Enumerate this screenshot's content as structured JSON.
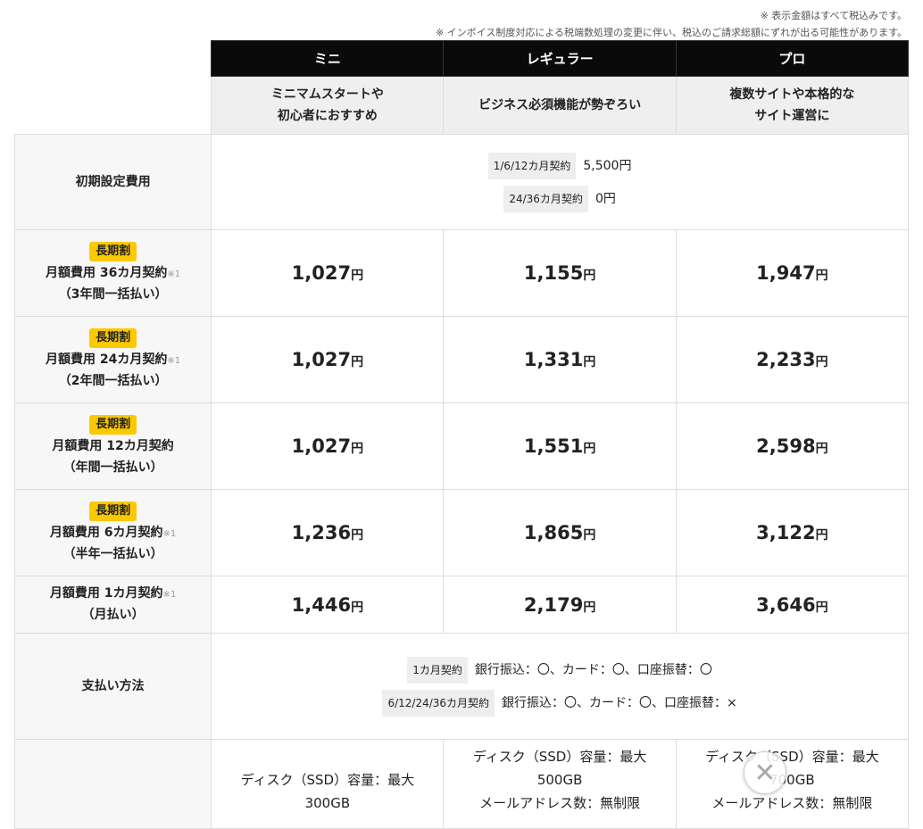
{
  "notes": [
    "※ 表示金額はすべて税込みです。",
    "※ インボイス制度対応による税端数処理の変更に伴い、税込のご請求総額にずれが出る可能性があります。"
  ],
  "plans": [
    {
      "name": "ミニ",
      "desc1": "ミニマムスタートや",
      "desc2": "初心者におすすめ"
    },
    {
      "name": "レギュラー",
      "desc1": "ビジネス必須機能が勢ぞろい",
      "desc2": ""
    },
    {
      "name": "プロ",
      "desc1": "複数サイトや本格的な",
      "desc2": "サイト運営に"
    }
  ],
  "setup": {
    "label": "初期設定費用",
    "lines": [
      {
        "tag": "1/6/12カ月契約",
        "value": "5,500円"
      },
      {
        "tag": "24/36カ月契約",
        "value": "0円"
      }
    ]
  },
  "badge": "長期割",
  "yen": "円",
  "rows": [
    {
      "l1": "月額費用 36カ月契約",
      "sup": "※1",
      "l2": "（3年間一括払い）",
      "badge": true,
      "prices": [
        "1,027",
        "1,155",
        "1,947"
      ]
    },
    {
      "l1": "月額費用 24カ月契約",
      "sup": "※1",
      "l2": "（2年間一括払い）",
      "badge": true,
      "prices": [
        "1,027",
        "1,331",
        "2,233"
      ]
    },
    {
      "l1": "月額費用 12カ月契約",
      "sup": "",
      "l2": "（年間一括払い）",
      "badge": true,
      "prices": [
        "1,027",
        "1,551",
        "2,598"
      ]
    },
    {
      "l1": "月額費用 6カ月契約",
      "sup": "※1",
      "l2": "（半年一括払い）",
      "badge": true,
      "prices": [
        "1,236",
        "1,865",
        "3,122"
      ]
    },
    {
      "l1": "月額費用 1カ月契約",
      "sup": "※1",
      "l2": "（月払い）",
      "badge": false,
      "prices": [
        "1,446",
        "2,179",
        "3,646"
      ]
    }
  ],
  "payment": {
    "label": "支払い方法",
    "lines": [
      {
        "tag": "1カ月契約",
        "value": "銀行振込：〇、カード：〇、口座振替：〇"
      },
      {
        "tag": "6/12/24/36カ月契約",
        "value": "銀行振込：〇、カード：〇、口座振替：×"
      }
    ]
  },
  "specs": [
    {
      "l1": "ディスク（SSD）容量：最大",
      "l2": "300GB",
      "l3": ""
    },
    {
      "l1": "ディスク（SSD）容量：最大",
      "l2": "500GB",
      "l3": "メールアドレス数：無制限"
    },
    {
      "l1": "ディスク（SSD）容量：最大",
      "l2": "700GB",
      "l3": "メールアドレス数：無制限"
    }
  ],
  "close_icon": "close-icon"
}
